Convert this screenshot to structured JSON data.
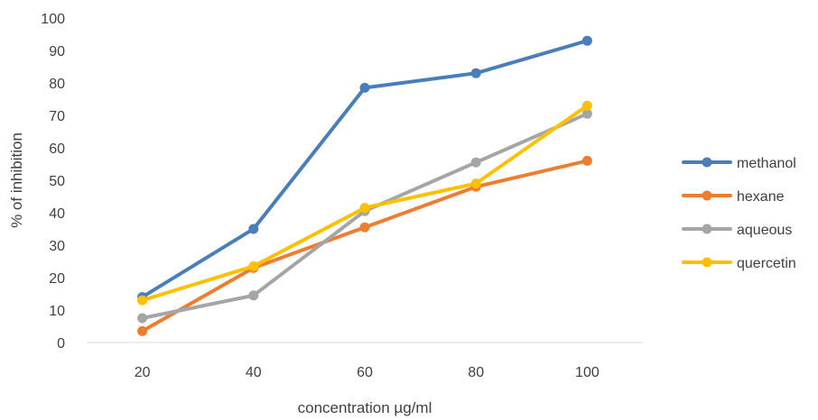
{
  "chart_data": {
    "type": "line",
    "title": "",
    "xlabel": "concentration µg/ml",
    "ylabel": "% of inhibition",
    "categories": [
      "20",
      "40",
      "60",
      "80",
      "100"
    ],
    "yticks": [
      "0",
      "10",
      "20",
      "30",
      "40",
      "50",
      "60",
      "70",
      "80",
      "90",
      "100"
    ],
    "ylim": [
      0,
      100
    ],
    "grid": false,
    "legend_position": "right",
    "series": [
      {
        "name": "methanol",
        "color": "#4a7ebb",
        "values": [
          14,
          35,
          78.5,
          83,
          93
        ]
      },
      {
        "name": "hexane",
        "color": "#ed7d31",
        "values": [
          3.5,
          23,
          35.5,
          48,
          56
        ]
      },
      {
        "name": "aqueous",
        "color": "#a5a5a5",
        "values": [
          7.5,
          14.5,
          40.5,
          55.5,
          70.5
        ]
      },
      {
        "name": "quercetin",
        "color": "#ffc000",
        "values": [
          13,
          23.5,
          41.5,
          49,
          73
        ]
      }
    ]
  }
}
